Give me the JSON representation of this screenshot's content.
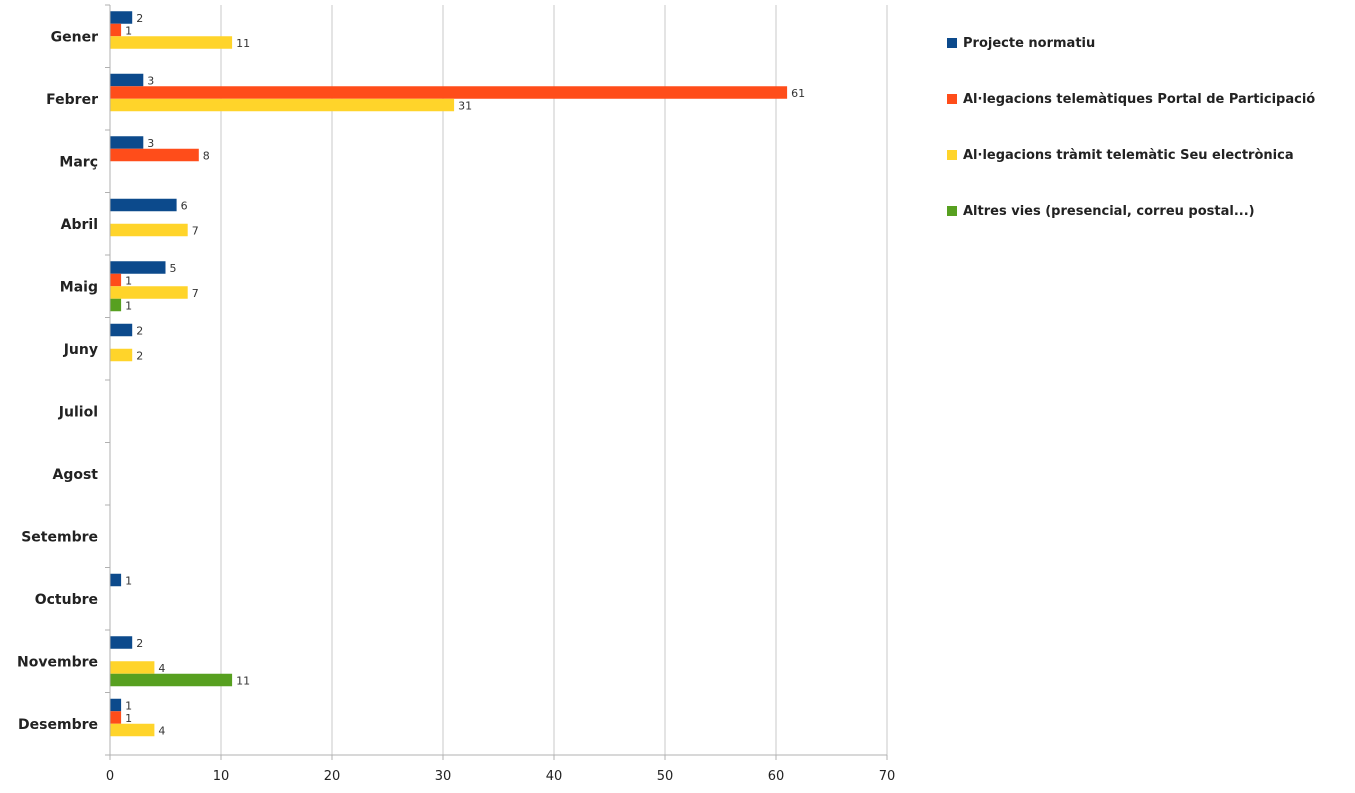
{
  "chart_data": {
    "type": "bar",
    "orientation": "horizontal",
    "categories": [
      "Gener",
      "Febrer",
      "Març",
      "Abril",
      "Maig",
      "Juny",
      "Juliol",
      "Agost",
      "Setembre",
      "Octubre",
      "Novembre",
      "Desembre"
    ],
    "series": [
      {
        "name": "Projecte normatiu",
        "color": "#0c4a8c",
        "values": [
          2,
          3,
          3,
          6,
          5,
          2,
          null,
          null,
          null,
          1,
          2,
          1
        ]
      },
      {
        "name": "Al·legacions telemàtiques Portal de Participació",
        "color": "#ff4d1a",
        "values": [
          1,
          61,
          8,
          null,
          1,
          null,
          null,
          null,
          null,
          null,
          null,
          1
        ]
      },
      {
        "name": "Al·legacions tràmit telemàtic Seu electrònica",
        "color": "#ffd42a",
        "values": [
          11,
          31,
          null,
          7,
          7,
          2,
          null,
          null,
          null,
          null,
          4,
          4
        ]
      },
      {
        "name": "Altres vies (presencial, correu postal...)",
        "color": "#57a020",
        "values": [
          null,
          null,
          null,
          null,
          1,
          null,
          null,
          null,
          null,
          null,
          11,
          null
        ]
      }
    ],
    "xlim": [
      0,
      70
    ],
    "xticks": [
      0,
      10,
      20,
      30,
      40,
      50,
      60,
      70
    ],
    "xlabel": "",
    "ylabel": "",
    "grid": "vertical",
    "legend": "right"
  }
}
